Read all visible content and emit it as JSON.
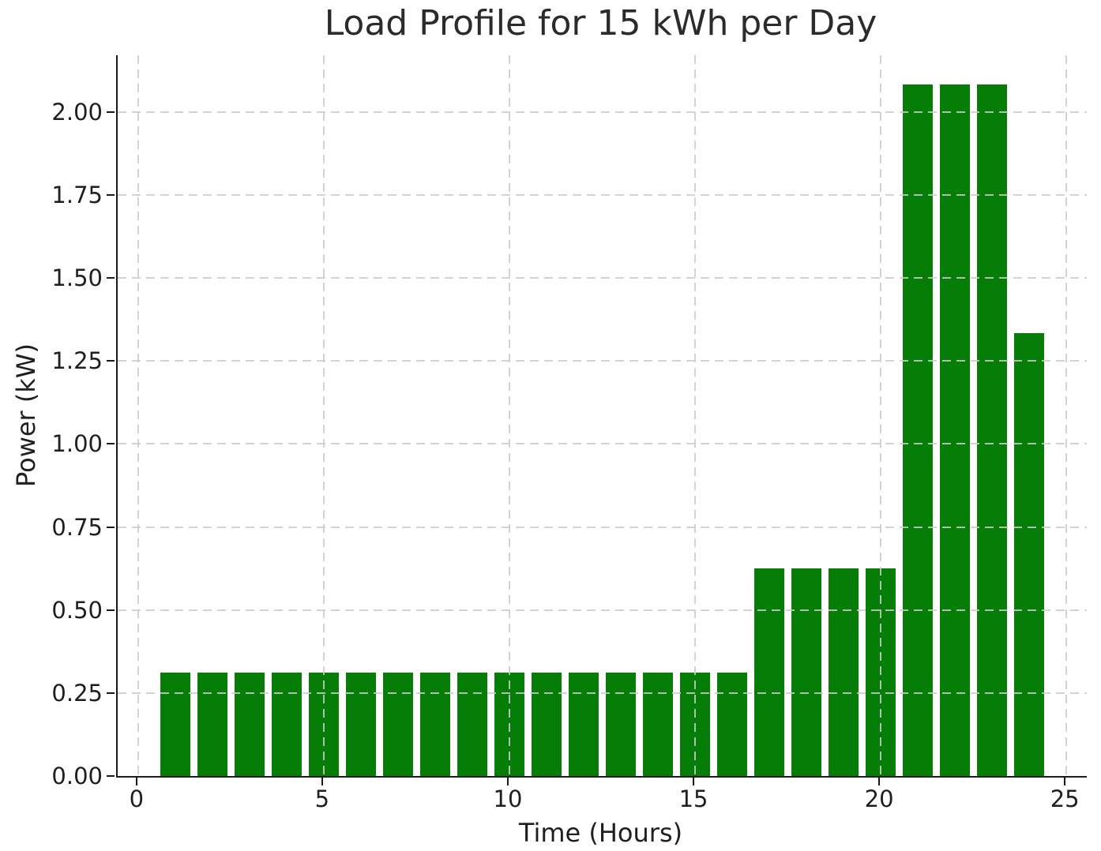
{
  "chart_data": {
    "type": "bar",
    "title": "Load Profile for 15 kWh per Day",
    "xlabel": "Time (Hours)",
    "ylabel": "Power (kW)",
    "categories": [
      1,
      2,
      3,
      4,
      5,
      6,
      7,
      8,
      9,
      10,
      11,
      12,
      13,
      14,
      15,
      16,
      17,
      18,
      19,
      20,
      21,
      22,
      23,
      24
    ],
    "values": [
      0.3125,
      0.3125,
      0.3125,
      0.3125,
      0.3125,
      0.3125,
      0.3125,
      0.3125,
      0.3125,
      0.3125,
      0.3125,
      0.3125,
      0.3125,
      0.3125,
      0.3125,
      0.3125,
      0.625,
      0.625,
      0.625,
      0.625,
      2.0833,
      2.0833,
      2.0833,
      1.3333
    ],
    "bar_color": "#067d06",
    "bar_width": 0.8,
    "xlim": [
      -0.55,
      25.55
    ],
    "ylim": [
      0,
      2.171
    ],
    "xticks": [
      0,
      5,
      10,
      15,
      20,
      25
    ],
    "xtick_labels": [
      "0",
      "5",
      "10",
      "15",
      "20",
      "25"
    ],
    "yticks": [
      0,
      0.25,
      0.5,
      0.75,
      1.0,
      1.25,
      1.5,
      1.75,
      2.0
    ],
    "ytick_labels": [
      "0.00",
      "0.25",
      "0.50",
      "0.75",
      "1.00",
      "1.25",
      "1.50",
      "1.75",
      "2.00"
    ],
    "grid": true,
    "grid_style": "dashed",
    "grid_color": "#cbcbcb",
    "legend": "none"
  }
}
